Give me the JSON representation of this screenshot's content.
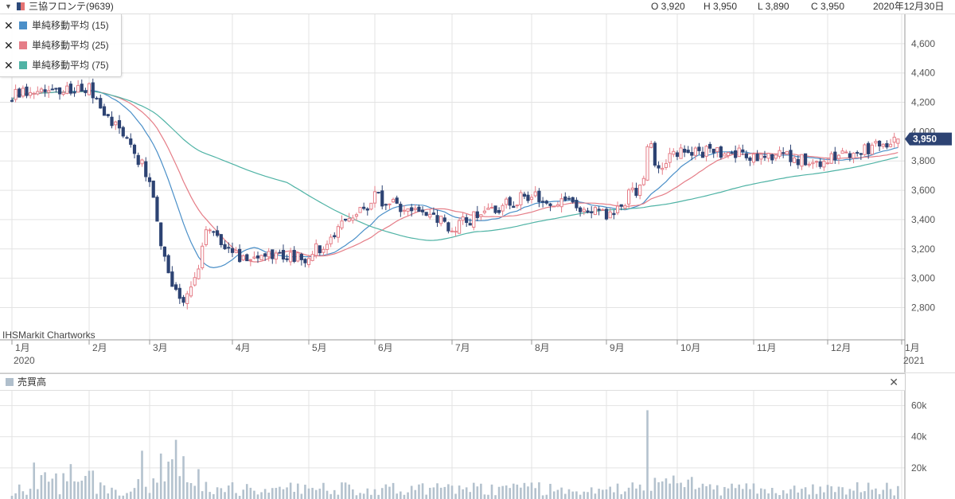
{
  "header": {
    "title": "三協フロンテ(9639)",
    "open": "O 3,920",
    "high": "H 3,950",
    "low": "L 3,890",
    "close": "C 3,950",
    "date": "2020年12月30日"
  },
  "legend": [
    {
      "label": "単純移動平均 (15)",
      "color": "#4a8fc8"
    },
    {
      "label": "単純移動平均 (25)",
      "color": "#e57d87"
    },
    {
      "label": "単純移動平均 (75)",
      "color": "#4fb3a5"
    }
  ],
  "watermark": "IHSMarkit Chartworks",
  "volume_panel": {
    "title": "売買高",
    "close_symbol": "✕"
  },
  "last_price_label": "3,950",
  "colors": {
    "up": "#e57d87",
    "down": "#2d4373",
    "volume": "#b4c2ce",
    "grid": "#e3e3e3",
    "price_tag": "#2d4373"
  },
  "chart_data": [
    {
      "type": "candlestick",
      "title": "三協フロンテ(9639)",
      "x_tick_labels": [
        {
          "label": "1月",
          "sub": "2020"
        },
        {
          "label": "2月",
          "sub": ""
        },
        {
          "label": "3月",
          "sub": ""
        },
        {
          "label": "4月",
          "sub": ""
        },
        {
          "label": "5月",
          "sub": ""
        },
        {
          "label": "6月",
          "sub": ""
        },
        {
          "label": "7月",
          "sub": ""
        },
        {
          "label": "8月",
          "sub": ""
        },
        {
          "label": "9月",
          "sub": ""
        },
        {
          "label": "10月",
          "sub": ""
        },
        {
          "label": "11月",
          "sub": ""
        },
        {
          "label": "12月",
          "sub": ""
        },
        {
          "label": "1月",
          "sub": "2021"
        }
      ],
      "y_ticks": [
        2800,
        3000,
        3200,
        3400,
        3600,
        3800,
        4000,
        4200,
        4400,
        4600
      ],
      "y_tick_labels": [
        "2,800",
        "3,000",
        "3,200",
        "3,400",
        "3,600",
        "3,800",
        "4,000",
        "4,200",
        "4,400",
        "4,600"
      ],
      "ylim": [
        2580,
        4800
      ],
      "anchors_month_close": [
        [
          "1月",
          4250
        ],
        [
          "2月",
          4300
        ],
        [
          "3月",
          3700
        ],
        [
          "4月",
          3150
        ],
        [
          "5月",
          3150
        ],
        [
          "6月",
          3550
        ],
        [
          "7月",
          3350
        ],
        [
          "8月",
          3580
        ],
        [
          "9月",
          3420
        ],
        [
          "10月",
          3870
        ],
        [
          "11月",
          3840
        ],
        [
          "12月",
          3800
        ],
        [
          "12月30日",
          3950
        ]
      ],
      "series": [
        {
          "name": "単純移動平均 (15)",
          "window": 15
        },
        {
          "name": "単純移動平均 (25)",
          "window": 25
        },
        {
          "name": "単純移動平均 (75)",
          "window": 75
        }
      ],
      "last": {
        "open": 3920,
        "high": 3950,
        "low": 3890,
        "close": 3950
      }
    },
    {
      "type": "bar",
      "title": "売買高",
      "y_ticks": [
        20000,
        40000,
        60000
      ],
      "y_tick_labels": [
        "20k",
        "40k",
        "60k"
      ],
      "ylim": [
        0,
        70000
      ],
      "notable_spikes": [
        {
          "date": "3月中旬",
          "value": 38000
        },
        {
          "date": "9月下旬",
          "value": 57000
        }
      ]
    }
  ]
}
